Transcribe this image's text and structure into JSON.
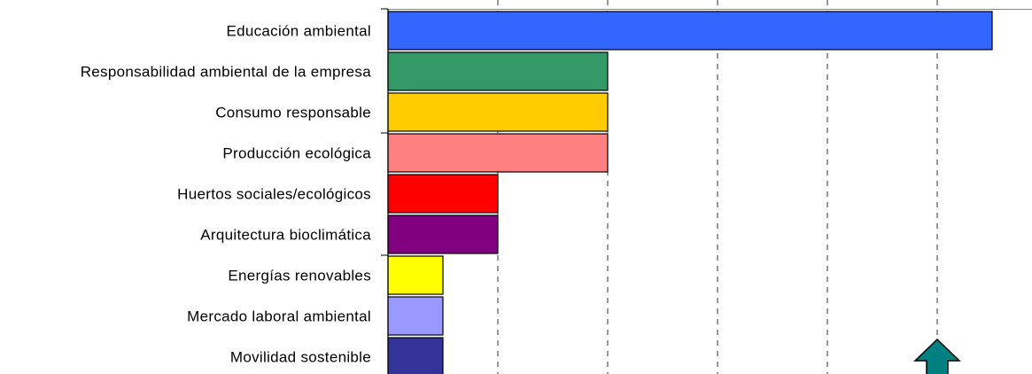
{
  "chart_data": {
    "type": "bar",
    "orientation": "horizontal",
    "categories": [
      "Educación ambiental",
      "Responsabilidad ambiental de la empresa",
      "Consumo responsable",
      "Producción ecológica",
      "Huertos sociales/ecológicos",
      "Arquitectura bioclimática",
      "Energías renovables",
      "Mercado laboral ambiental",
      "Movilidad sostenible"
    ],
    "values": [
      11,
      4,
      4,
      4,
      2,
      2,
      1,
      1,
      1
    ],
    "colors": [
      "#3366ff",
      "#339966",
      "#ffcc00",
      "#ff8080",
      "#ff0000",
      "#800080",
      "#ffff00",
      "#9999ff",
      "#333399"
    ],
    "xlim": [
      0,
      11.5
    ],
    "grid": "vertical dashed",
    "legend": "none",
    "arrow_color": "#008080",
    "arrow_icon": "up-arrow-icon"
  }
}
